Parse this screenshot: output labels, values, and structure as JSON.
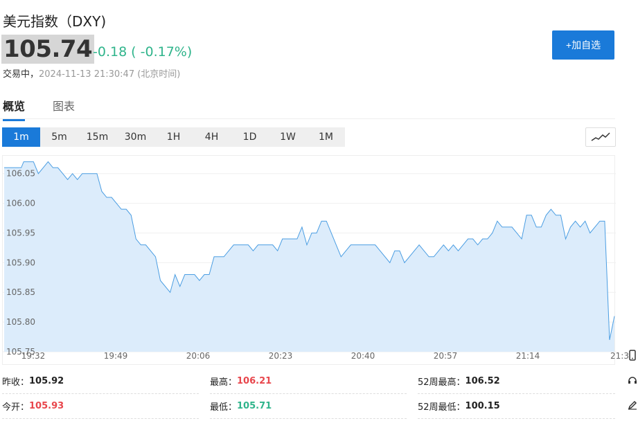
{
  "header": {
    "title": "美元指数（DXY)",
    "price": "105.74",
    "change": "-0.18",
    "change_pct": "( -0.17%)",
    "status_label": "交易中，",
    "timestamp": "2024-11-13 21:30:47 (北京时间)",
    "add_button": "+加自选"
  },
  "colors": {
    "accent": "#1a7ad9",
    "down": "#2fb48b",
    "up": "#e8464c",
    "area": "#dcecfb",
    "line": "#4a9de2"
  },
  "tabs": [
    {
      "label": "概览",
      "active": true
    },
    {
      "label": "图表",
      "active": false
    }
  ],
  "intervals": [
    "1m",
    "5m",
    "15m",
    "30m",
    "1H",
    "4H",
    "1D",
    "1W",
    "1M"
  ],
  "active_interval": "1m",
  "chart_toggle_icon": "line-chart-icon",
  "chart_data": {
    "type": "area",
    "ylim": [
      105.75,
      106.08
    ],
    "y_ticks": [
      "106.05",
      "106.00",
      "105.95",
      "105.90",
      "105.85",
      "105.80",
      "105.75"
    ],
    "x_ticks": [
      "19:32",
      "19:49",
      "20:06",
      "20:23",
      "20:40",
      "20:57",
      "21:14",
      "21:3"
    ],
    "x_tick_minutes": [
      0,
      17,
      34,
      51,
      68,
      85,
      102,
      119
    ],
    "x_max_minute": 120,
    "points": [
      [
        0,
        106.06
      ],
      [
        2,
        106.06
      ],
      [
        3.5,
        106.06
      ],
      [
        4,
        106.07
      ],
      [
        6,
        106.07
      ],
      [
        7,
        106.05
      ],
      [
        8,
        106.06
      ],
      [
        9,
        106.07
      ],
      [
        10,
        106.06
      ],
      [
        11,
        106.06
      ],
      [
        12,
        106.05
      ],
      [
        13,
        106.04
      ],
      [
        14,
        106.05
      ],
      [
        15,
        106.04
      ],
      [
        16,
        106.05
      ],
      [
        17,
        106.05
      ],
      [
        19,
        106.05
      ],
      [
        20,
        106.02
      ],
      [
        21,
        106.01
      ],
      [
        22,
        106.01
      ],
      [
        24,
        105.99
      ],
      [
        25,
        105.99
      ],
      [
        26,
        105.98
      ],
      [
        27,
        105.94
      ],
      [
        28,
        105.93
      ],
      [
        29,
        105.93
      ],
      [
        31,
        105.91
      ],
      [
        32,
        105.87
      ],
      [
        34,
        105.85
      ],
      [
        35,
        105.88
      ],
      [
        36,
        105.86
      ],
      [
        37,
        105.88
      ],
      [
        39,
        105.88
      ],
      [
        40,
        105.87
      ],
      [
        41,
        105.88
      ],
      [
        42,
        105.88
      ],
      [
        43,
        105.91
      ],
      [
        45,
        105.91
      ],
      [
        46,
        105.92
      ],
      [
        47,
        105.93
      ],
      [
        50,
        105.93
      ],
      [
        51,
        105.92
      ],
      [
        52,
        105.93
      ],
      [
        55,
        105.93
      ],
      [
        56,
        105.92
      ],
      [
        57,
        105.94
      ],
      [
        60,
        105.94
      ],
      [
        61,
        105.96
      ],
      [
        62,
        105.93
      ],
      [
        63,
        105.95
      ],
      [
        64,
        105.95
      ],
      [
        65,
        105.97
      ],
      [
        66,
        105.97
      ],
      [
        67,
        105.95
      ],
      [
        69,
        105.91
      ],
      [
        70,
        105.92
      ],
      [
        71,
        105.93
      ],
      [
        76,
        105.93
      ],
      [
        77,
        105.92
      ],
      [
        79,
        105.9
      ],
      [
        80,
        105.92
      ],
      [
        81,
        105.92
      ],
      [
        82,
        105.9
      ],
      [
        83,
        105.91
      ],
      [
        85,
        105.93
      ],
      [
        87,
        105.91
      ],
      [
        88,
        105.91
      ],
      [
        89,
        105.92
      ],
      [
        90,
        105.93
      ],
      [
        91,
        105.92
      ],
      [
        92,
        105.93
      ],
      [
        93,
        105.92
      ],
      [
        94,
        105.93
      ],
      [
        95,
        105.94
      ],
      [
        96,
        105.94
      ],
      [
        97,
        105.93
      ],
      [
        98,
        105.94
      ],
      [
        99,
        105.94
      ],
      [
        100,
        105.95
      ],
      [
        101,
        105.97
      ],
      [
        102,
        105.96
      ],
      [
        104,
        105.96
      ],
      [
        106,
        105.94
      ],
      [
        107,
        105.98
      ],
      [
        108,
        105.98
      ],
      [
        109,
        105.96
      ],
      [
        110,
        105.96
      ],
      [
        111,
        105.98
      ],
      [
        112,
        105.99
      ],
      [
        113,
        105.98
      ],
      [
        114,
        105.98
      ],
      [
        115,
        105.94
      ],
      [
        116,
        105.96
      ],
      [
        117,
        105.97
      ],
      [
        118,
        105.96
      ],
      [
        119,
        105.97
      ],
      [
        120,
        105.95
      ],
      [
        121,
        105.96
      ],
      [
        122,
        105.97
      ],
      [
        123,
        105.97
      ],
      [
        124,
        105.77
      ],
      [
        125,
        105.81
      ]
    ]
  },
  "stats": [
    {
      "label": "昨收：",
      "value": "105.92",
      "tone": "neutral"
    },
    {
      "label": "最高：",
      "value": "106.21",
      "tone": "up"
    },
    {
      "label": "52周最高：",
      "value": "106.52",
      "tone": "neutral"
    },
    {
      "label": "今开：",
      "value": "105.93",
      "tone": "up"
    },
    {
      "label": "最低：",
      "value": "105.71",
      "tone": "down"
    },
    {
      "label": "52周最低：",
      "value": "100.15",
      "tone": "neutral"
    }
  ],
  "side_icons": [
    "mobile-icon",
    "headset-icon",
    "edit-icon"
  ]
}
